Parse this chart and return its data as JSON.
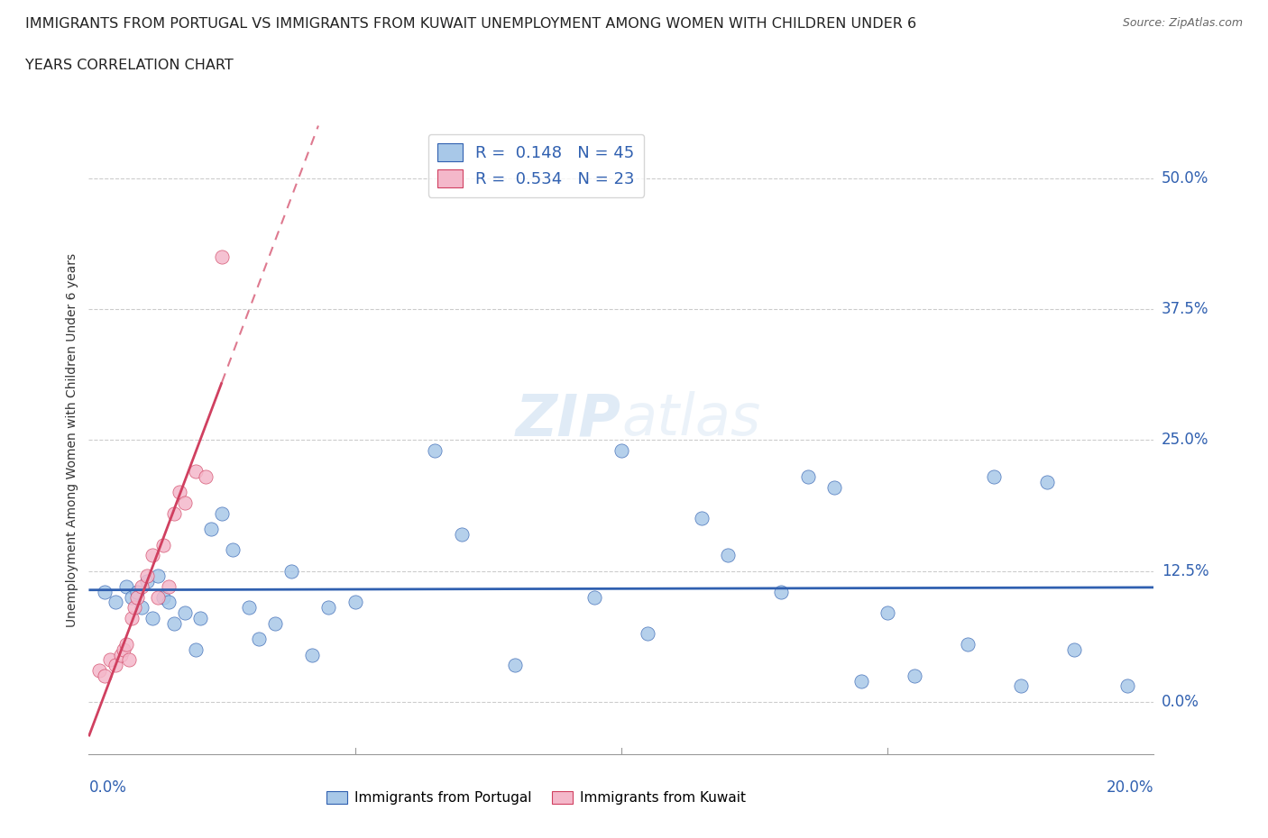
{
  "title_line1": "IMMIGRANTS FROM PORTUGAL VS IMMIGRANTS FROM KUWAIT UNEMPLOYMENT AMONG WOMEN WITH CHILDREN UNDER 6",
  "title_line2": "YEARS CORRELATION CHART",
  "source": "Source: ZipAtlas.com",
  "ylabel": "Unemployment Among Women with Children Under 6 years",
  "ytick_labels": [
    "0.0%",
    "12.5%",
    "25.0%",
    "37.5%",
    "50.0%"
  ],
  "ytick_values": [
    0.0,
    12.5,
    25.0,
    37.5,
    50.0
  ],
  "xlim": [
    0.0,
    20.0
  ],
  "ylim": [
    -5.0,
    55.0
  ],
  "legend_r1": "R =  0.148   N = 45",
  "legend_r2": "R =  0.534   N = 23",
  "color_portugal": "#a8c8e8",
  "color_kuwait": "#f4b8ca",
  "trendline_portugal_color": "#3060b0",
  "trendline_kuwait_color": "#d04060",
  "watermark": "ZIPatlas",
  "portugal_x": [
    0.3,
    0.5,
    0.7,
    0.8,
    0.9,
    1.0,
    1.1,
    1.2,
    1.3,
    1.4,
    1.5,
    1.6,
    1.8,
    2.0,
    2.1,
    2.3,
    2.5,
    2.7,
    3.0,
    3.2,
    3.5,
    3.8,
    4.2,
    4.5,
    5.0,
    6.5,
    7.0,
    8.0,
    9.5,
    10.0,
    10.5,
    11.5,
    12.0,
    13.0,
    13.5,
    14.0,
    14.5,
    15.0,
    15.5,
    16.5,
    17.0,
    17.5,
    18.0,
    18.5,
    19.5
  ],
  "portugal_y": [
    10.5,
    9.5,
    11.0,
    10.0,
    10.5,
    9.0,
    11.5,
    8.0,
    12.0,
    10.0,
    9.5,
    7.5,
    8.5,
    5.0,
    8.0,
    16.5,
    18.0,
    14.5,
    9.0,
    6.0,
    7.5,
    12.5,
    4.5,
    9.0,
    9.5,
    24.0,
    16.0,
    3.5,
    10.0,
    24.0,
    6.5,
    17.5,
    14.0,
    10.5,
    21.5,
    20.5,
    2.0,
    8.5,
    2.5,
    5.5,
    21.5,
    1.5,
    21.0,
    5.0,
    1.5
  ],
  "kuwait_x": [
    0.2,
    0.3,
    0.4,
    0.5,
    0.6,
    0.65,
    0.7,
    0.75,
    0.8,
    0.85,
    0.9,
    1.0,
    1.1,
    1.2,
    1.3,
    1.4,
    1.5,
    1.6,
    1.7,
    1.8,
    2.0,
    2.2,
    2.5
  ],
  "kuwait_y": [
    3.0,
    2.5,
    4.0,
    3.5,
    4.5,
    5.0,
    5.5,
    4.0,
    8.0,
    9.0,
    10.0,
    11.0,
    12.0,
    14.0,
    10.0,
    15.0,
    11.0,
    18.0,
    20.0,
    19.0,
    22.0,
    21.5,
    42.5
  ]
}
